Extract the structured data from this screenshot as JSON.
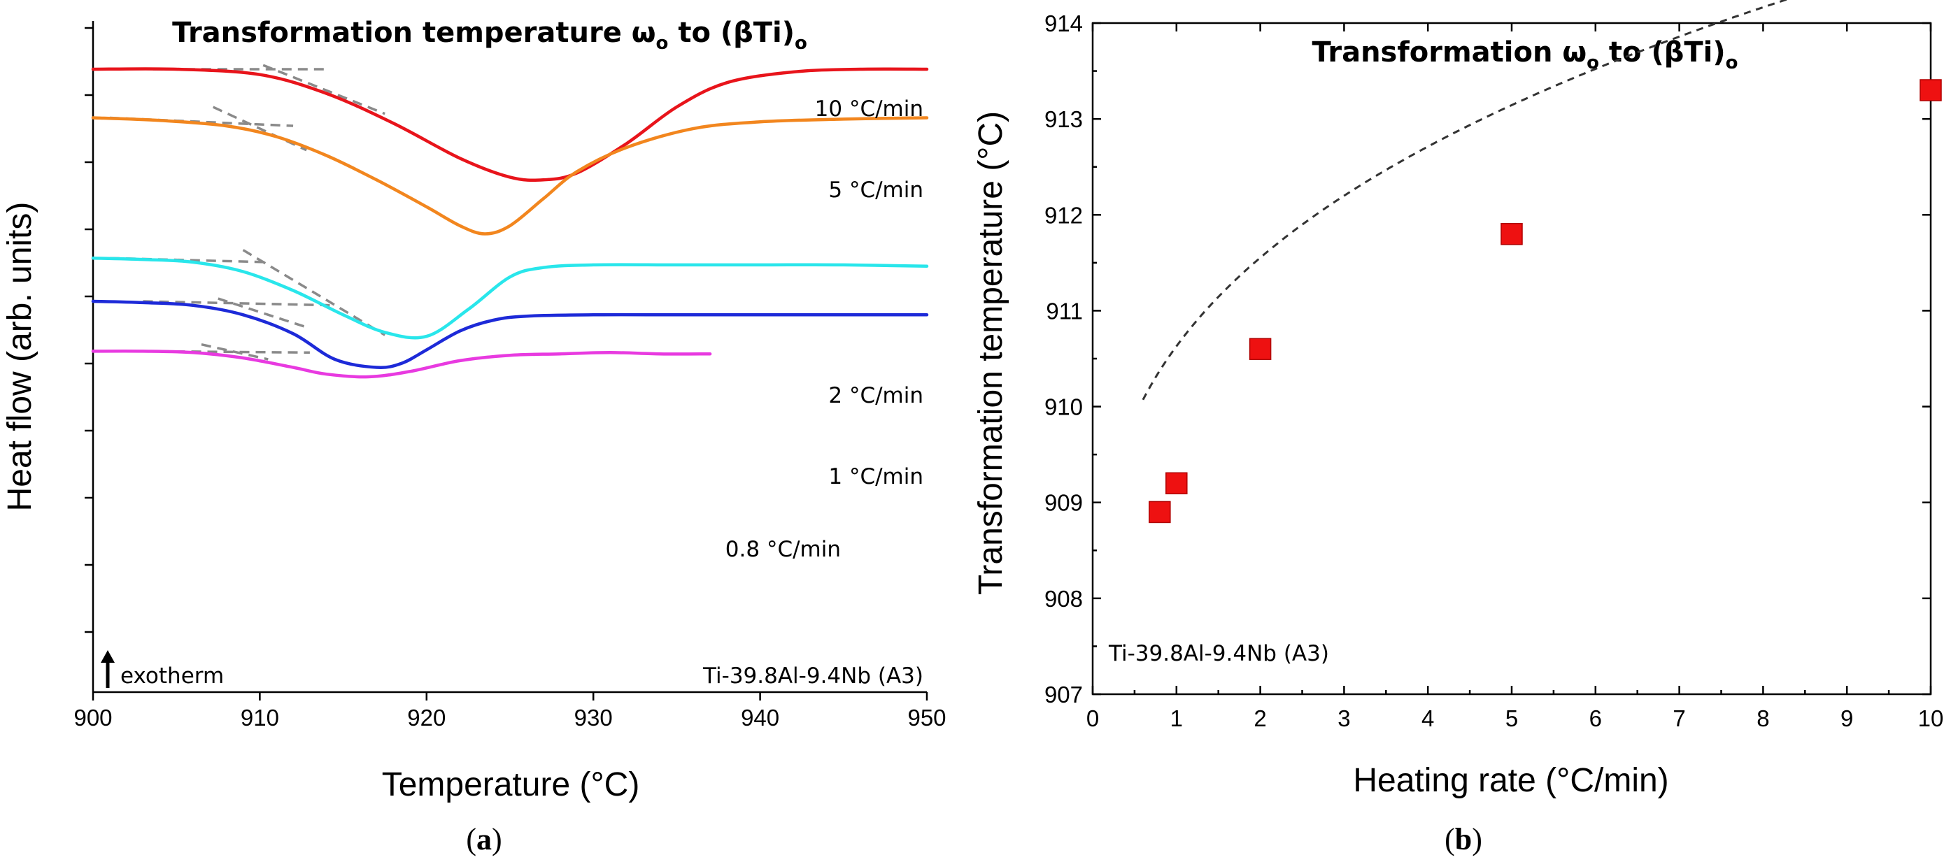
{
  "chart_data": [
    {
      "panel": "a",
      "type": "line",
      "title": "Transformation temperature ω",
      "title_sub": "o",
      "title_mid": " to (βTi)",
      "title_sub2": "o",
      "xlabel": "Temperature (°C)",
      "ylabel": "Heat flow (arb. units)",
      "xlim": [
        900,
        950
      ],
      "xticks": [
        "900",
        "910",
        "920",
        "930",
        "940",
        "950"
      ],
      "annotation_left": "exotherm",
      "annotation_right": "Ti-39.8Al-9.4Nb (A3)",
      "panel_label": "a",
      "series": [
        {
          "name": "10 °C/min",
          "color": "#e8141b",
          "x": [
            900,
            905,
            910,
            914,
            918,
            922,
            925,
            927,
            929,
            932,
            935,
            938,
            942,
            946,
            950
          ],
          "y": [
            100,
            100,
            96,
            82,
            60,
            34,
            20,
            18,
            23,
            45,
            72,
            90,
            98,
            100,
            100
          ]
        },
        {
          "name": "5 °C/min",
          "color": "#f2861e",
          "x": [
            900,
            904,
            908,
            911,
            914,
            917,
            920,
            922,
            923.5,
            925,
            927,
            929,
            932,
            936,
            940,
            945,
            950
          ],
          "y": [
            64,
            62,
            58,
            50,
            36,
            18,
            -2,
            -16,
            -22,
            -16,
            4,
            24,
            42,
            56,
            61,
            63,
            64
          ]
        },
        {
          "name": "2 °C/min",
          "color": "#29e6eb",
          "x": [
            900,
            903,
            906,
            909,
            912,
            915,
            917.5,
            920,
            922.5,
            925,
            927,
            930,
            935,
            940,
            945,
            950
          ],
          "y": [
            -40,
            -41,
            -43,
            -50,
            -64,
            -82,
            -95,
            -98,
            -78,
            -54,
            -47,
            -45,
            -45,
            -45,
            -45,
            -46
          ]
        },
        {
          "name": "1 °C/min",
          "color": "#1d2ad8",
          "x": [
            900,
            903,
            906,
            909,
            912,
            914.5,
            917,
            918.5,
            920,
            922,
            924,
            926,
            930,
            935,
            940,
            945,
            950
          ],
          "y": [
            -72,
            -73,
            -75,
            -82,
            -96,
            -115,
            -121,
            -118,
            -108,
            -94,
            -86,
            -83,
            -82,
            -82,
            -82,
            -82,
            -82
          ]
        },
        {
          "name": "0.8 °C/min",
          "color": "#e83ae0",
          "x": [
            900,
            903,
            906,
            909,
            912,
            914,
            916.5,
            919,
            922,
            925,
            928,
            931,
            934,
            937
          ],
          "y": [
            -109,
            -109,
            -110,
            -114,
            -121,
            -126,
            -128,
            -124,
            -116,
            -112,
            -111,
            -110,
            -111,
            -111
          ]
        }
      ],
      "tangents": [
        [
          [
            903.6,
            100
          ],
          [
            914,
            100
          ]
        ],
        [
          [
            910.2,
            103
          ],
          [
            917.5,
            67
          ]
        ],
        [
          [
            901,
            64
          ],
          [
            912,
            58
          ]
        ],
        [
          [
            907.2,
            72
          ],
          [
            912.8,
            40
          ]
        ],
        [
          [
            901,
            -40
          ],
          [
            910.5,
            -43
          ]
        ],
        [
          [
            909,
            -34
          ],
          [
            917.5,
            -97
          ]
        ],
        [
          [
            903,
            -72
          ],
          [
            914.5,
            -75
          ]
        ],
        [
          [
            907.5,
            -70
          ],
          [
            913,
            -92
          ]
        ],
        [
          [
            903,
            -109
          ],
          [
            913,
            -110
          ]
        ],
        [
          [
            906.5,
            -104
          ],
          [
            910.5,
            -115
          ]
        ]
      ]
    },
    {
      "panel": "b",
      "type": "scatter",
      "title": "Transformation ω",
      "title_sub": "o",
      "title_mid": " to (βTi)",
      "title_sub2": "o",
      "xlabel": "Heating rate (°C/min)",
      "ylabel": "Transformation temperature (°C)",
      "xlim": [
        0,
        10
      ],
      "ylim": [
        907,
        914
      ],
      "xticks": [
        "0",
        "1",
        "2",
        "3",
        "4",
        "5",
        "6",
        "7",
        "8",
        "9",
        "10"
      ],
      "yticks": [
        "907",
        "908",
        "909",
        "910",
        "911",
        "912",
        "913",
        "914"
      ],
      "x": [
        0.8,
        1,
        2,
        5,
        10
      ],
      "y": [
        908.9,
        909.2,
        910.6,
        911.8,
        913.3
      ],
      "marker_color": "#ee1111",
      "fit": "dashed power-law fit",
      "annotation": "Ti-39.8Al-9.4Nb (A3)",
      "panel_label": "b"
    }
  ]
}
